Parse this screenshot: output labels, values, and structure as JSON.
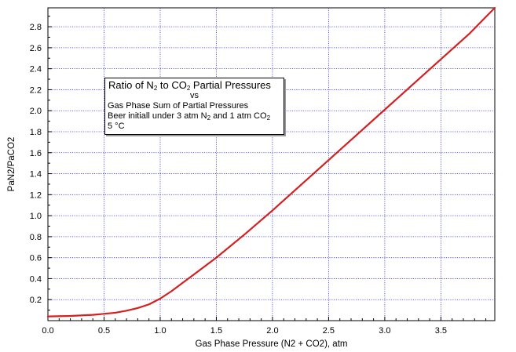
{
  "chart_data": {
    "type": "line",
    "xlabel": "Gas Phase Pressure (N2 + CO2), atm",
    "ylabel": "PaN2/PaCO2",
    "xlim": [
      0.0,
      3.98
    ],
    "ylim": [
      0.0,
      2.98
    ],
    "x_ticks": [
      "0.0",
      "0.5",
      "1.0",
      "1.5",
      "2.0",
      "2.5",
      "3.0",
      "3.5"
    ],
    "x_tick_values": [
      0.0,
      0.5,
      1.0,
      1.5,
      2.0,
      2.5,
      3.0,
      3.5
    ],
    "y_ticks": [
      "0.2",
      "0.4",
      "0.6",
      "0.8",
      "1.0",
      "1.2",
      "1.4",
      "1.6",
      "1.8",
      "2.0",
      "2.2",
      "2.4",
      "2.6",
      "2.8"
    ],
    "y_tick_values": [
      0.2,
      0.4,
      0.6,
      0.8,
      1.0,
      1.2,
      1.4,
      1.6,
      1.8,
      2.0,
      2.2,
      2.4,
      2.6,
      2.8
    ],
    "grid": true,
    "series": [
      {
        "color": "#d42020",
        "x": [
          0.0,
          0.2,
          0.4,
          0.6,
          0.7,
          0.8,
          0.9,
          1.0,
          1.1,
          1.2,
          1.3,
          1.5,
          1.75,
          2.0,
          2.25,
          2.5,
          2.75,
          3.0,
          3.25,
          3.5,
          3.75,
          3.98
        ],
        "y": [
          0.04,
          0.045,
          0.055,
          0.075,
          0.095,
          0.12,
          0.155,
          0.21,
          0.28,
          0.36,
          0.44,
          0.6,
          0.82,
          1.05,
          1.29,
          1.53,
          1.77,
          2.01,
          2.25,
          2.49,
          2.73,
          2.98
        ]
      }
    ],
    "annotation": {
      "line1_a": "Ratio of N",
      "line1_sub1": "2",
      "line1_b": "  to CO",
      "line1_sub2": "2",
      "line1_c": " Partial Pressures",
      "line2": "vs",
      "line3": "Gas Phase Sum of Partial Pressures",
      "line4_a": "Beer initiall under 3 atm N",
      "line4_sub1": "2",
      "line4_b": " and 1 atm CO",
      "line4_sub2": "2",
      "line5": "5 °C"
    }
  }
}
